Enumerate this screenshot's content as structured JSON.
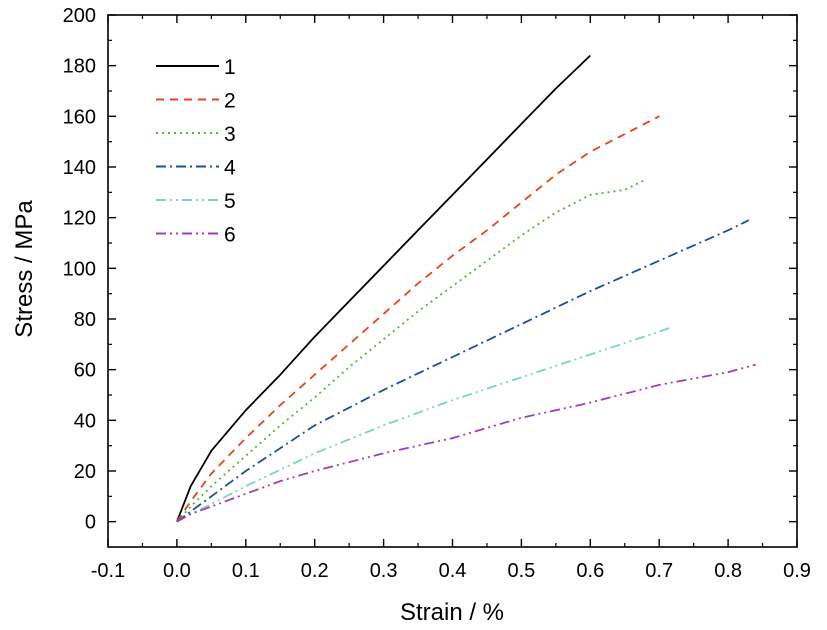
{
  "chart_data": {
    "type": "line",
    "xlabel": "Strain / %",
    "ylabel": "Stress / MPa",
    "xlim": [
      -0.1,
      0.9
    ],
    "ylim": [
      -10,
      200
    ],
    "xticks": [
      -0.1,
      0.0,
      0.1,
      0.2,
      0.3,
      0.4,
      0.5,
      0.6,
      0.7,
      0.8,
      0.9
    ],
    "xtick_labels": [
      "-0.1",
      "0.0",
      "0.1",
      "0.2",
      "0.3",
      "0.4",
      "0.5",
      "0.6",
      "0.7",
      "0.8",
      "0.9"
    ],
    "yticks": [
      0,
      20,
      40,
      60,
      80,
      100,
      120,
      140,
      160,
      180,
      200
    ],
    "ytick_labels": [
      "0",
      "20",
      "40",
      "60",
      "80",
      "100",
      "120",
      "140",
      "160",
      "180",
      "200"
    ],
    "grid": false,
    "legend": "top-left",
    "series": [
      {
        "name": "1",
        "color": "#000000",
        "dash": "solid",
        "x": [
          0,
          0.02,
          0.05,
          0.1,
          0.15,
          0.2,
          0.25,
          0.3,
          0.35,
          0.4,
          0.45,
          0.5,
          0.55,
          0.6
        ],
        "y": [
          0,
          14,
          28,
          44,
          58,
          73,
          87,
          101,
          115,
          129,
          143,
          157,
          171,
          184
        ]
      },
      {
        "name": "2",
        "color": "#e8431f",
        "dash": "8,6",
        "x": [
          0,
          0.02,
          0.05,
          0.1,
          0.15,
          0.2,
          0.25,
          0.3,
          0.35,
          0.4,
          0.45,
          0.5,
          0.55,
          0.6,
          0.65,
          0.7
        ],
        "y": [
          0,
          8,
          19,
          33,
          46,
          58,
          70,
          82,
          94,
          105,
          115,
          126,
          137,
          146,
          153,
          160
        ]
      },
      {
        "name": "3",
        "color": "#4cb833",
        "dash": "2,4",
        "x": [
          0,
          0.02,
          0.05,
          0.1,
          0.15,
          0.2,
          0.25,
          0.3,
          0.35,
          0.4,
          0.45,
          0.5,
          0.55,
          0.6,
          0.65,
          0.68
        ],
        "y": [
          0,
          6,
          14,
          26,
          38,
          49,
          61,
          72,
          83,
          93,
          103,
          113,
          122,
          129,
          131,
          135
        ]
      },
      {
        "name": "4",
        "color": "#1f4ea0",
        "dash": "10,4,2,4",
        "x": [
          0,
          0.02,
          0.05,
          0.1,
          0.2,
          0.3,
          0.4,
          0.5,
          0.6,
          0.7,
          0.8,
          0.83
        ],
        "y": [
          0,
          4,
          10,
          20,
          38,
          52,
          65,
          78,
          91,
          103,
          115,
          119
        ]
      },
      {
        "name": "5",
        "color": "#7fd0c8",
        "dash": "10,4,2,4,2,4",
        "x": [
          0,
          0.02,
          0.05,
          0.1,
          0.2,
          0.3,
          0.4,
          0.5,
          0.6,
          0.7,
          0.72
        ],
        "y": [
          0,
          3,
          7,
          14,
          27,
          38,
          48,
          57,
          66,
          75,
          77
        ]
      },
      {
        "name": "6",
        "color": "#9b3fbf",
        "dash": "10,4,2,4,2,4",
        "x": [
          0,
          0.02,
          0.05,
          0.1,
          0.15,
          0.2,
          0.3,
          0.4,
          0.5,
          0.6,
          0.7,
          0.8,
          0.84
        ],
        "y": [
          0,
          3,
          6,
          11,
          16,
          20,
          27,
          33,
          41,
          47,
          54,
          59,
          62
        ]
      }
    ]
  }
}
